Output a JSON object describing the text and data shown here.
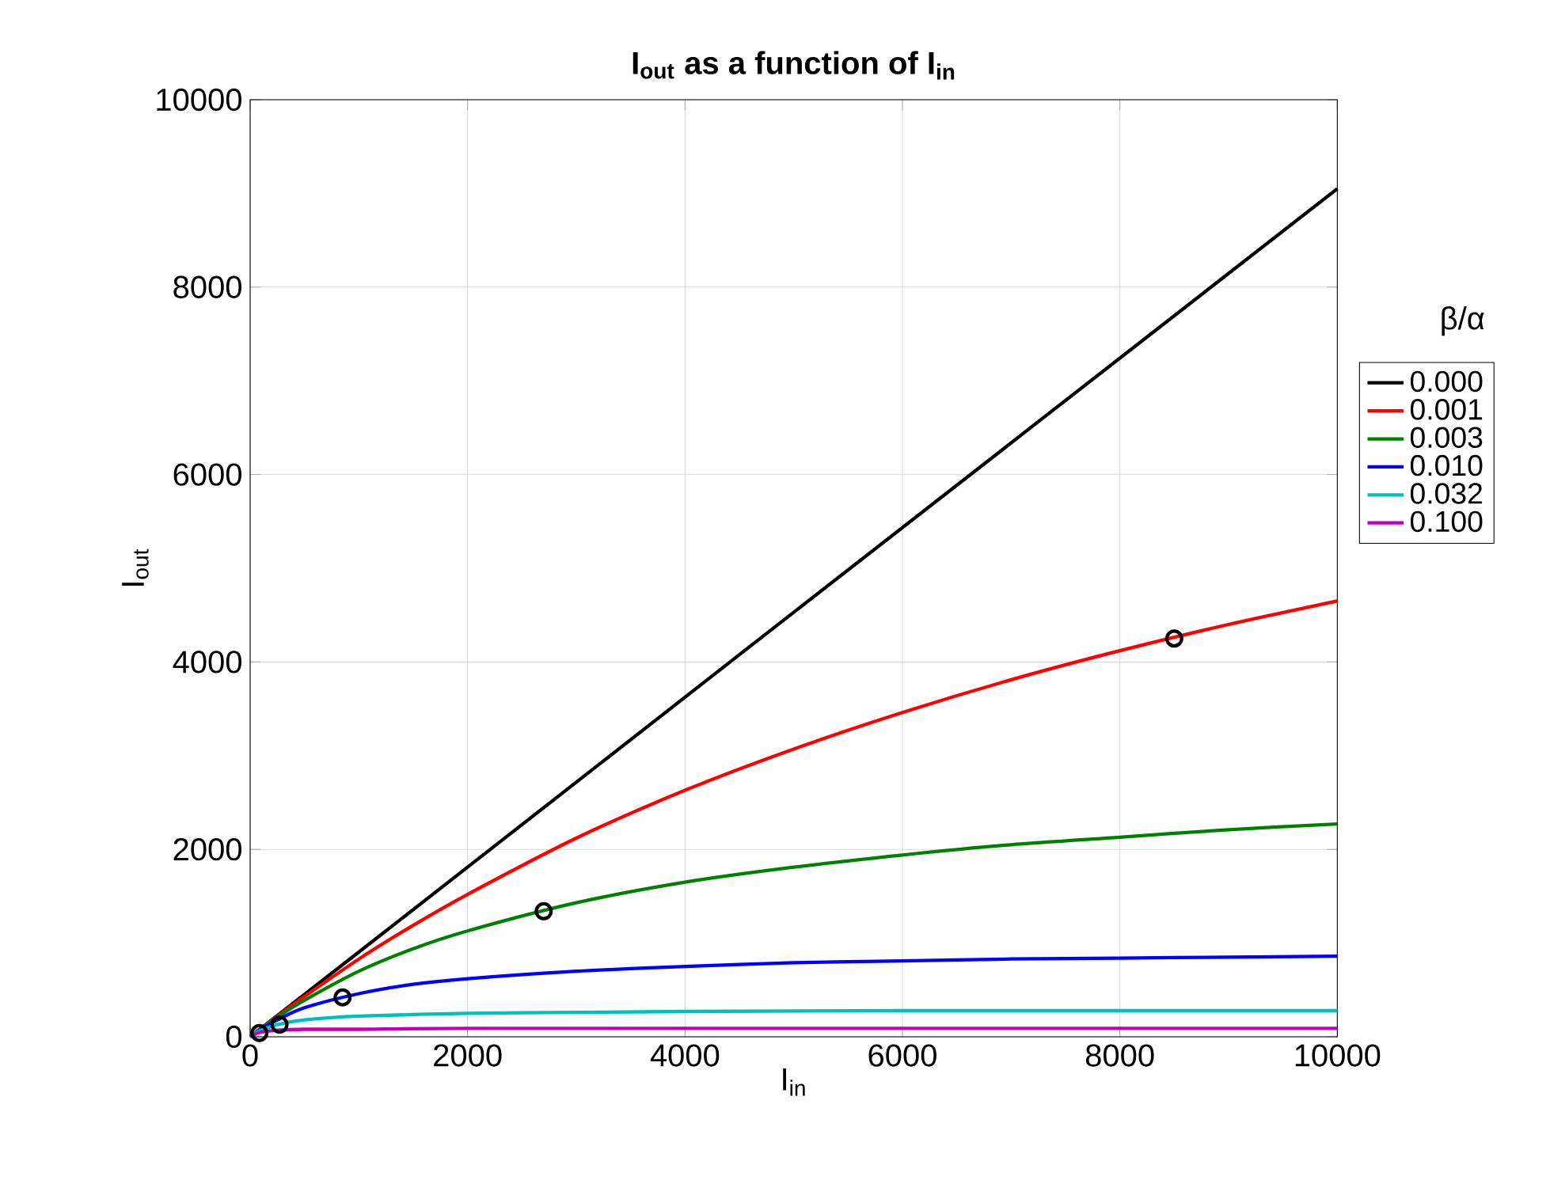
{
  "chart_data": {
    "type": "line",
    "title": "**I$_{out}$ as a function of I$_{in}$**",
    "xlabel": "I$_{in}$",
    "ylabel": "I$_{out}$",
    "legend_title": "β/α",
    "xlim": [
      0,
      10000
    ],
    "ylim": [
      0,
      10000
    ],
    "xticks": [
      0,
      2000,
      4000,
      6000,
      8000,
      10000
    ],
    "yticks": [
      0,
      2000,
      4000,
      6000,
      8000,
      10000
    ],
    "grid": true,
    "legend": "right",
    "marker": "none",
    "line_style": "solid",
    "series": [
      {
        "name": "0.000",
        "color": "#000000",
        "x": [
          0,
          2000,
          5000,
          10000
        ],
        "values": [
          0,
          1810,
          4530,
          9050
        ]
      },
      {
        "name": "0.001",
        "color": "#ff0000",
        "x": [
          0,
          250,
          500,
          1000,
          1500,
          2000,
          3000,
          4000,
          5000,
          6000,
          7000,
          8000,
          9000,
          10000
        ],
        "values": [
          0,
          220,
          430,
          830,
          1190,
          1520,
          2120,
          2630,
          3070,
          3460,
          3810,
          4120,
          4400,
          4650
        ]
      },
      {
        "name": "0.003",
        "color": "#008000",
        "x": [
          0,
          250,
          500,
          1000,
          1500,
          2000,
          3000,
          4000,
          5000,
          6000,
          7000,
          8000,
          9000,
          10000
        ],
        "values": [
          0,
          210,
          390,
          700,
          940,
          1130,
          1430,
          1650,
          1810,
          1940,
          2050,
          2130,
          2210,
          2270
        ]
      },
      {
        "name": "0.010",
        "color": "#0000ff",
        "x": [
          0,
          100,
          250,
          500,
          1000,
          1500,
          2000,
          3000,
          4000,
          5000,
          6000,
          7000,
          8000,
          9000,
          10000
        ],
        "values": [
          0,
          80,
          180,
          310,
          460,
          560,
          620,
          700,
          750,
          790,
          810,
          830,
          840,
          850,
          860
        ]
      },
      {
        "name": "0.032",
        "color": "#00bfbf",
        "x": [
          0,
          50,
          100,
          250,
          500,
          1000,
          2000,
          3000,
          4000,
          6000,
          8000,
          10000
        ],
        "values": [
          0,
          40,
          70,
          130,
          180,
          220,
          250,
          260,
          270,
          280,
          280,
          280
        ]
      },
      {
        "name": "0.100",
        "color": "#bf00bf",
        "x": [
          0,
          25,
          50,
          100,
          250,
          500,
          1000,
          2000,
          5000,
          10000
        ],
        "values": [
          0,
          20,
          30,
          50,
          70,
          80,
          80,
          90,
          90,
          90
        ]
      },
      {
        "type": "scatter",
        "marker": "circle",
        "color": "#000000",
        "x": [
          85,
          270,
          850,
          2700,
          8500
        ],
        "values": [
          40,
          130,
          420,
          1340,
          4250
        ]
      }
    ]
  }
}
